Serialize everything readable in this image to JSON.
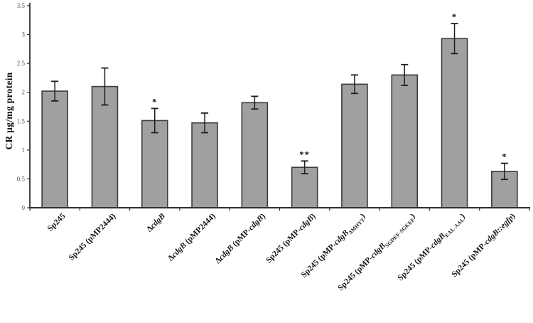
{
  "figure": {
    "background": "#ffffff",
    "description": "Grayscale bar chart with error bars and significance asterisks"
  },
  "chart_data": {
    "type": "bar",
    "title": "",
    "xlabel": "",
    "ylabel": "CR µg/mg protein",
    "ylim": [
      0,
      3.5
    ],
    "ytick_labels": [
      "0",
      "0.5",
      "1",
      "1.5",
      "2",
      "2.5",
      "3",
      "3.5"
    ],
    "ytick_step": 0.5,
    "grid": false,
    "legend": "none",
    "bar_fill": "#a0a0a0",
    "bar_stroke": "#3c3c3c",
    "axis_color": "#2f2f2f",
    "error_bar_color": "#1e1e1e",
    "tick_label_color": "#555555",
    "categories": [
      "Sp245",
      "Sp245 (pMP2444)",
      "ΔcdgB",
      "ΔcdgB (pMP2444)",
      "ΔcdgB (pMP-cdgB)",
      "Sp245 (pMP-cdgB)",
      "Sp245 (pMP-cdgBΔMHYT)",
      "Sp245 (pMP-cdgBSGDEF-SGKEF)",
      "Sp245 (pMP-cdgBEAL-AAL)",
      "Sp245 (pMP-cdgB::egfp)"
    ],
    "values": [
      2.02,
      2.1,
      1.51,
      1.47,
      1.82,
      0.7,
      2.14,
      2.3,
      2.93,
      0.63
    ],
    "errors": [
      0.17,
      0.32,
      0.21,
      0.17,
      0.11,
      0.11,
      0.16,
      0.18,
      0.26,
      0.14
    ],
    "significance": [
      "",
      "",
      "*",
      "",
      "",
      "**",
      "",
      "",
      "*",
      "*"
    ],
    "category_label_segments": [
      [
        {
          "t": "Sp245",
          "s": "n"
        }
      ],
      [
        {
          "t": "Sp245 (pMP2444)",
          "s": "n"
        }
      ],
      [
        {
          "t": "Δ",
          "s": "n"
        },
        {
          "t": "cdgB",
          "s": "i"
        }
      ],
      [
        {
          "t": "Δ",
          "s": "n"
        },
        {
          "t": "cdgB",
          "s": "i"
        },
        {
          "t": " (pMP2444)",
          "s": "n"
        }
      ],
      [
        {
          "t": "Δ",
          "s": "n"
        },
        {
          "t": "cdgB",
          "s": "i"
        },
        {
          "t": " (pMP-",
          "s": "n"
        },
        {
          "t": "cdgB",
          "s": "i"
        },
        {
          "t": ")",
          "s": "n"
        }
      ],
      [
        {
          "t": "Sp245 (pMP-",
          "s": "n"
        },
        {
          "t": "cdgB",
          "s": "i"
        },
        {
          "t": ")",
          "s": "n"
        }
      ],
      [
        {
          "t": "Sp245 (pMP-",
          "s": "n"
        },
        {
          "t": "cdgB",
          "s": "i"
        },
        {
          "t": "ΔMHYT",
          "s": "sub"
        },
        {
          "t": ")",
          "s": "n"
        }
      ],
      [
        {
          "t": "Sp245 (pMP-",
          "s": "n"
        },
        {
          "t": "cdgB",
          "s": "i"
        },
        {
          "t": "SGDEF-SGKEF",
          "s": "sub"
        },
        {
          "t": ")",
          "s": "n"
        }
      ],
      [
        {
          "t": "Sp245 (pMP-",
          "s": "n"
        },
        {
          "t": "cdgB",
          "s": "i"
        },
        {
          "t": "EAL-AAL",
          "s": "sub"
        },
        {
          "t": ")",
          "s": "n"
        }
      ],
      [
        {
          "t": "Sp245 (pMP-",
          "s": "n"
        },
        {
          "t": "cdgB::egfp",
          "s": "i"
        },
        {
          "t": ")",
          "s": "n"
        }
      ]
    ]
  }
}
